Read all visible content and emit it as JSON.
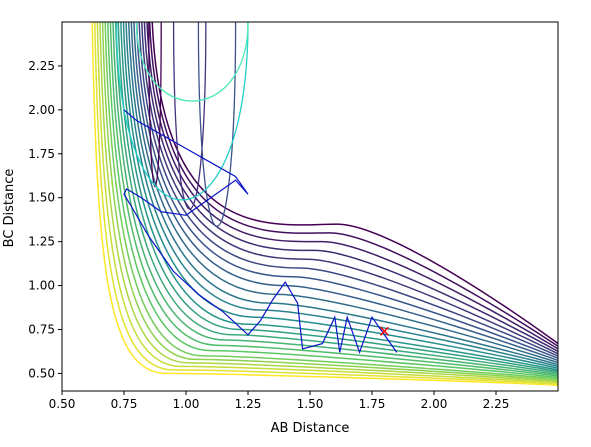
{
  "chart_data": {
    "type": "contour",
    "title": "",
    "xlabel": "AB Distance",
    "ylabel": "BC Distance",
    "xlim": [
      0.5,
      2.5
    ],
    "ylim": [
      0.4,
      2.5
    ],
    "x_ticks": [
      "0.50",
      "0.75",
      "1.00",
      "1.25",
      "1.50",
      "1.75",
      "2.00",
      "2.25"
    ],
    "x_tick_values": [
      0.5,
      0.75,
      1.0,
      1.25,
      1.5,
      1.75,
      2.0,
      2.25
    ],
    "y_ticks": [
      "0.50",
      "0.75",
      "1.00",
      "1.25",
      "1.50",
      "1.75",
      "2.00",
      "2.25"
    ],
    "y_tick_values": [
      0.5,
      0.75,
      1.0,
      1.25,
      1.5,
      1.75,
      2.0,
      2.25
    ],
    "grid": false,
    "colormap": [
      "#440154",
      "#3b528b",
      "#21918c",
      "#5ec962",
      "#fde725"
    ],
    "background_contours": {
      "description_values": "potential energy surface level sets, L-shaped, decreasing toward the valley near (0.74, 0.74) along both axes",
      "count": 24,
      "corner_x": [
        0.92,
        0.95,
        0.98,
        1.01,
        1.04,
        1.07,
        1.1,
        1.13,
        1.16,
        1.19,
        1.22,
        1.25,
        1.28,
        1.31,
        1.34,
        1.37,
        1.4,
        1.43,
        1.46,
        1.49,
        1.52,
        1.55,
        1.58,
        1.61
      ],
      "corner_y": [
        0.5,
        0.52,
        0.54,
        0.56,
        0.58,
        0.6,
        0.63,
        0.66,
        0.69,
        0.72,
        0.75,
        0.78,
        0.82,
        0.86,
        0.9,
        0.95,
        1.0,
        1.05,
        1.1,
        1.15,
        1.2,
        1.25,
        1.3,
        1.35
      ]
    },
    "trajectory": {
      "color": "#0a14c8",
      "x": [
        1.85,
        1.75,
        1.7,
        1.65,
        1.62,
        1.6,
        1.55,
        1.47,
        1.45,
        1.4,
        1.35,
        1.3,
        1.25,
        1.15,
        1.05,
        0.95,
        0.85,
        0.78,
        0.75,
        0.76,
        0.82,
        0.9,
        1.0,
        1.1,
        1.2,
        1.25,
        1.2,
        1.1,
        1.0,
        0.9,
        0.8,
        0.75
      ],
      "y": [
        0.62,
        0.82,
        0.62,
        0.82,
        0.62,
        0.82,
        0.67,
        0.64,
        0.9,
        1.02,
        0.92,
        0.8,
        0.72,
        0.85,
        0.95,
        1.08,
        1.28,
        1.45,
        1.52,
        1.55,
        1.5,
        1.42,
        1.4,
        1.5,
        1.6,
        1.52,
        1.62,
        1.7,
        1.78,
        1.86,
        1.94,
        2.0
      ]
    },
    "start_marker": {
      "x": 1.8,
      "y": 0.74,
      "symbol": "x",
      "color": "#ff0000"
    }
  }
}
